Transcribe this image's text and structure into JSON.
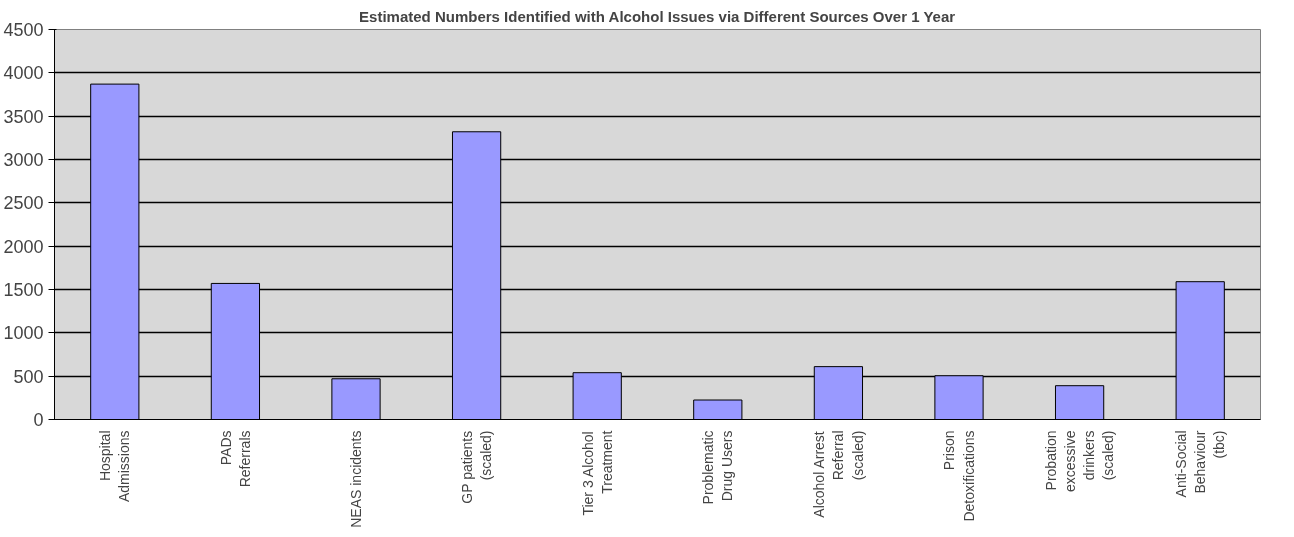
{
  "chart_data": {
    "type": "bar",
    "title": "Estimated Numbers Identified with Alcohol Issues via Different Sources Over 1 Year",
    "categories": [
      "Hospital\nAdmissions",
      "PADs\nReferrals",
      "NEAS incidents",
      "GP patients\n(scaled)",
      "Tier 3 Alcohol\nTreatment",
      "Problematic\nDrug Users",
      "Alcohol Arrest\nReferral\n(scaled)",
      "Prison\nDetoxifications",
      "Probation\nexcessive\ndrinkers\n(scaled)",
      "Anti-Social\nBehaviour\n(tbc)"
    ],
    "values": [
      3870,
      1570,
      470,
      3320,
      540,
      225,
      610,
      505,
      390,
      1590
    ],
    "color": "#9999ff",
    "ylim": [
      0,
      4500
    ],
    "yticks": [
      0,
      500,
      1000,
      1500,
      2000,
      2500,
      3000,
      3500,
      4000,
      4500
    ],
    "grid": "y"
  }
}
